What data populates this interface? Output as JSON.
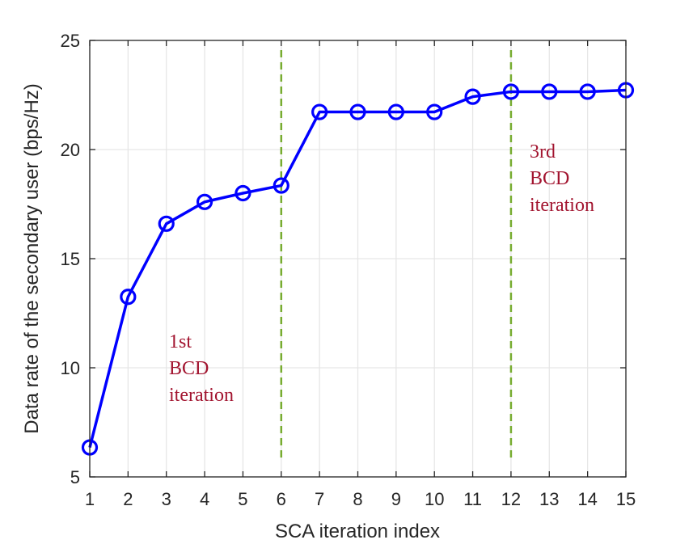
{
  "chart_data": {
    "type": "line",
    "xlabel": "SCA iteration index",
    "ylabel": "Data rate of the secondary user (bps/Hz)",
    "xlim": [
      1,
      15
    ],
    "ylim": [
      5,
      25
    ],
    "xticks": [
      "1",
      "2",
      "3",
      "4",
      "5",
      "6",
      "7",
      "8",
      "9",
      "10",
      "11",
      "12",
      "13",
      "14",
      "15"
    ],
    "yticks": [
      "5",
      "10",
      "15",
      "20",
      "25"
    ],
    "grid": true,
    "series": [
      {
        "x": [
          1,
          2,
          3,
          4,
          5,
          6,
          7,
          8,
          9,
          10,
          11,
          12,
          13,
          14,
          15
        ],
        "values": [
          6.35,
          13.25,
          16.6,
          17.6,
          18.0,
          18.35,
          21.72,
          21.72,
          21.72,
          21.72,
          22.42,
          22.65,
          22.65,
          22.65,
          22.72
        ],
        "color": "#0000ff",
        "marker": "circle"
      }
    ],
    "vlines": [
      {
        "x": 6,
        "color": "#77ac30",
        "style": "dashed"
      },
      {
        "x": 12,
        "color": "#77ac30",
        "style": "dashed"
      }
    ],
    "annotations": [
      {
        "lines": [
          "1st",
          "BCD",
          "iteration"
        ],
        "color": "#a2142f"
      },
      {
        "lines": [
          "3rd",
          "BCD",
          "iteration"
        ],
        "color": "#a2142f"
      }
    ]
  }
}
